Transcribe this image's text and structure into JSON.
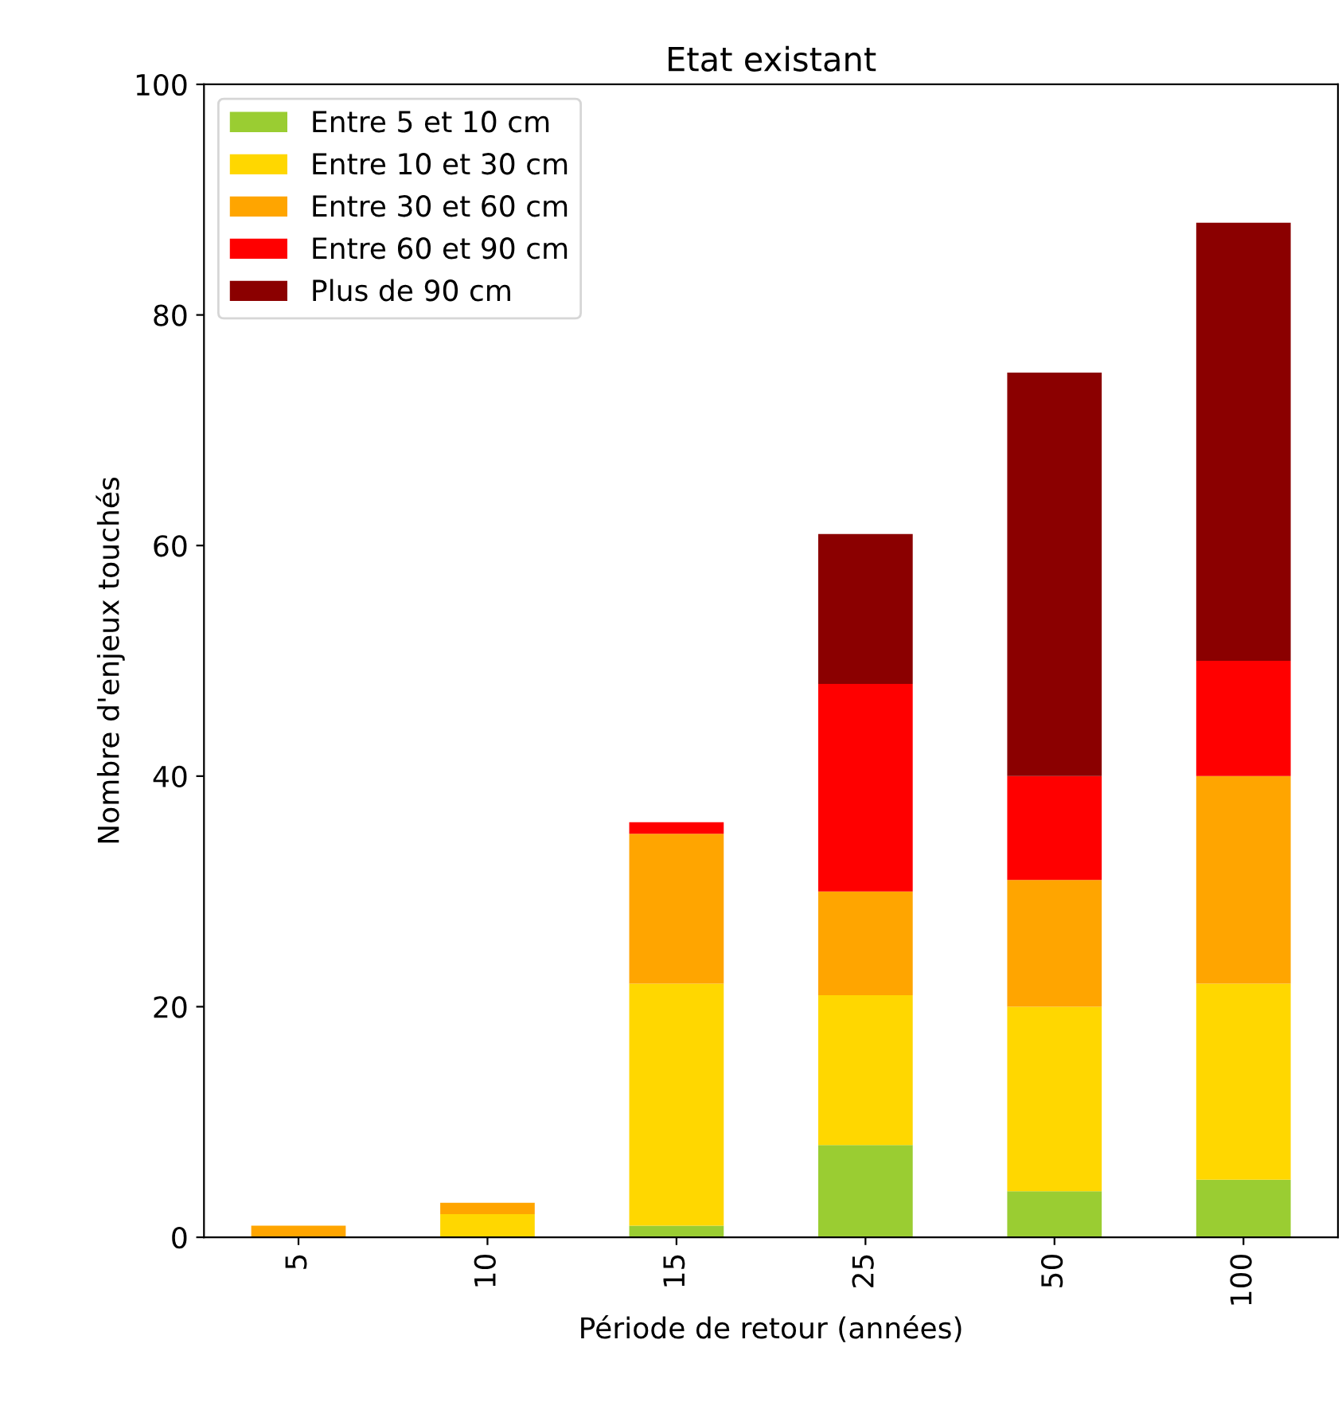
{
  "chart_data": {
    "type": "bar",
    "title": "Etat existant",
    "xlabel": "Période de retour (années)",
    "ylabel": "Nombre d'enjeux touchés",
    "categories": [
      "5",
      "10",
      "15",
      "25",
      "50",
      "100"
    ],
    "stacked": true,
    "series": [
      {
        "name": "Entre 5 et 10 cm",
        "color": "#9acd32",
        "values": [
          0,
          0,
          1,
          8,
          4,
          5
        ]
      },
      {
        "name": "Entre 10 et 30 cm",
        "color": "#ffd700",
        "values": [
          0,
          2,
          21,
          13,
          16,
          17
        ]
      },
      {
        "name": "Entre 30 et 60 cm",
        "color": "#ffa500",
        "values": [
          1,
          1,
          13,
          9,
          11,
          18
        ]
      },
      {
        "name": "Entre 60 et 90 cm",
        "color": "#ff0000",
        "values": [
          0,
          0,
          1,
          18,
          9,
          10
        ]
      },
      {
        "name": "Plus de 90 cm",
        "color": "#8b0000",
        "values": [
          0,
          0,
          0,
          13,
          35,
          38
        ]
      }
    ],
    "ylim": [
      0,
      100
    ],
    "yticks": [
      0,
      20,
      40,
      60,
      80,
      100
    ],
    "legend": "upper left",
    "grid": false
  }
}
